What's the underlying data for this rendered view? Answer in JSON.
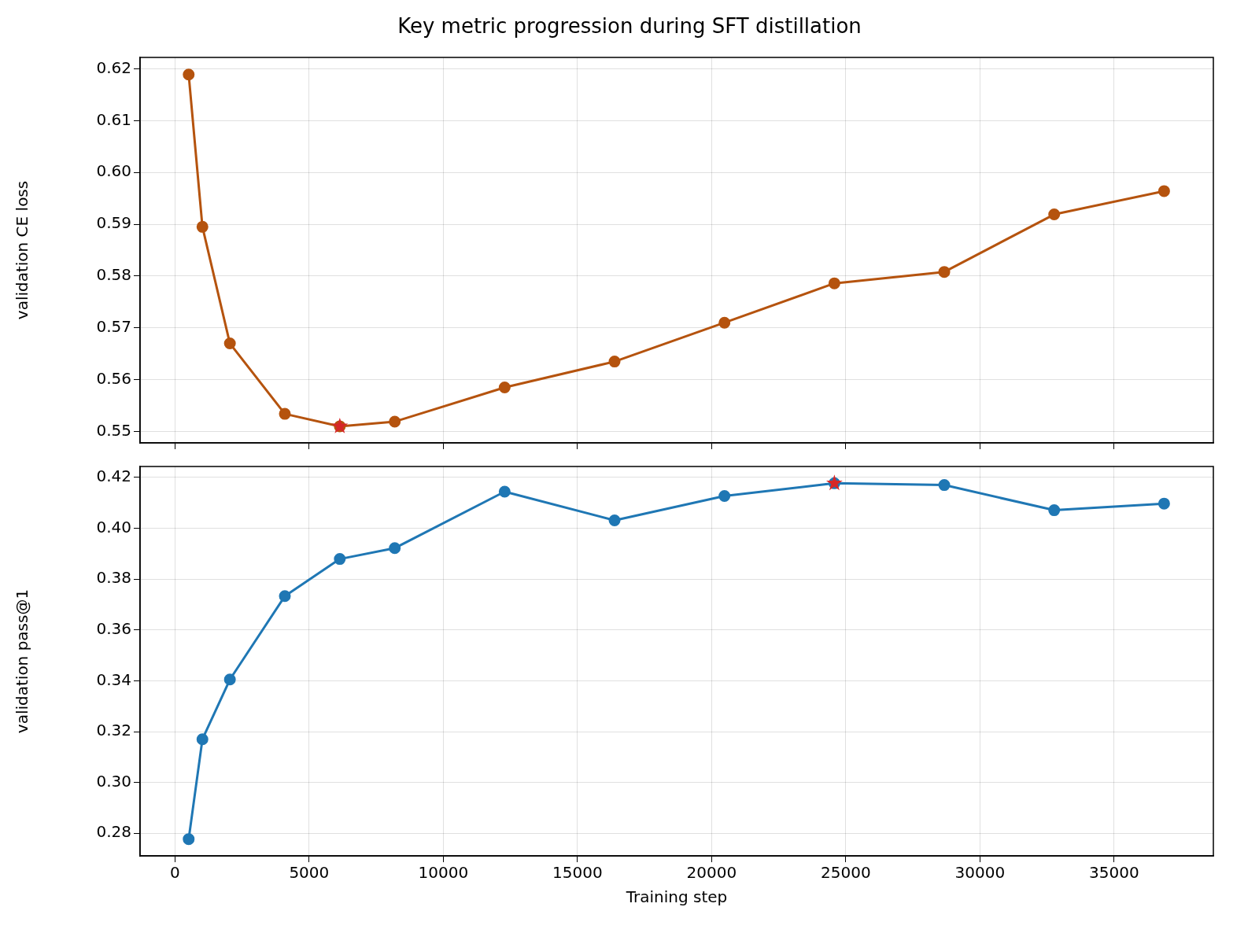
{
  "chart_data": [
    {
      "type": "line",
      "title": "Key metric progression during SFT distillation",
      "ylabel": "validation CE loss",
      "x": [
        512,
        1024,
        2048,
        4096,
        6144,
        8192,
        12288,
        16384,
        20480,
        24576,
        28672,
        32768,
        36864
      ],
      "xlim": [
        -1300,
        38700
      ],
      "xticks": [
        0,
        5000,
        10000,
        15000,
        20000,
        25000,
        30000,
        35000
      ],
      "ylim": [
        0.5478,
        0.6222
      ],
      "yticks": [
        0.55,
        0.56,
        0.57,
        0.58,
        0.59,
        {
          "value": 0.6,
          "label": "0.60"
        },
        0.61,
        0.62
      ],
      "tick_labels": "y",
      "grid": true,
      "marker": "circle",
      "line_style": "solid",
      "series": [
        {
          "color": "#b5530e",
          "values": [
            0.6189,
            0.5895,
            0.567,
            0.5534,
            0.551,
            0.5519,
            0.5585,
            0.5635,
            0.571,
            0.5786,
            0.5808,
            0.5919,
            0.5964
          ]
        },
        {
          "type": "scatter",
          "color": "#d62728",
          "marker": "star",
          "x": [
            6144
          ],
          "values": [
            0.551
          ]
        }
      ]
    },
    {
      "type": "line",
      "xlabel": "Training step",
      "ylabel": "validation pass@1",
      "x": [
        512,
        1024,
        2048,
        4096,
        6144,
        8192,
        12288,
        16384,
        20480,
        24576,
        28672,
        32768,
        36864
      ],
      "xlim": [
        -1300,
        38700
      ],
      "xticks": [
        0,
        5000,
        10000,
        15000,
        20000,
        25000,
        30000,
        35000
      ],
      "ylim": [
        0.2711,
        0.4243
      ],
      "yticks": [
        0.28,
        {
          "value": 0.3,
          "label": "0.30"
        },
        0.32,
        0.34,
        0.36,
        0.38,
        {
          "value": 0.4,
          "label": "0.40"
        },
        0.42
      ],
      "grid": true,
      "marker": "circle",
      "line_style": "solid",
      "series": [
        {
          "color": "#1f77b4",
          "values": [
            0.2777,
            0.317,
            0.3405,
            0.3733,
            0.3879,
            0.3922,
            0.4144,
            0.4031,
            0.4127,
            0.4177,
            0.417,
            0.4071,
            0.4097
          ]
        },
        {
          "type": "scatter",
          "color": "#d62728",
          "marker": "star",
          "x": [
            24576
          ],
          "values": [
            0.4177
          ]
        }
      ]
    }
  ]
}
